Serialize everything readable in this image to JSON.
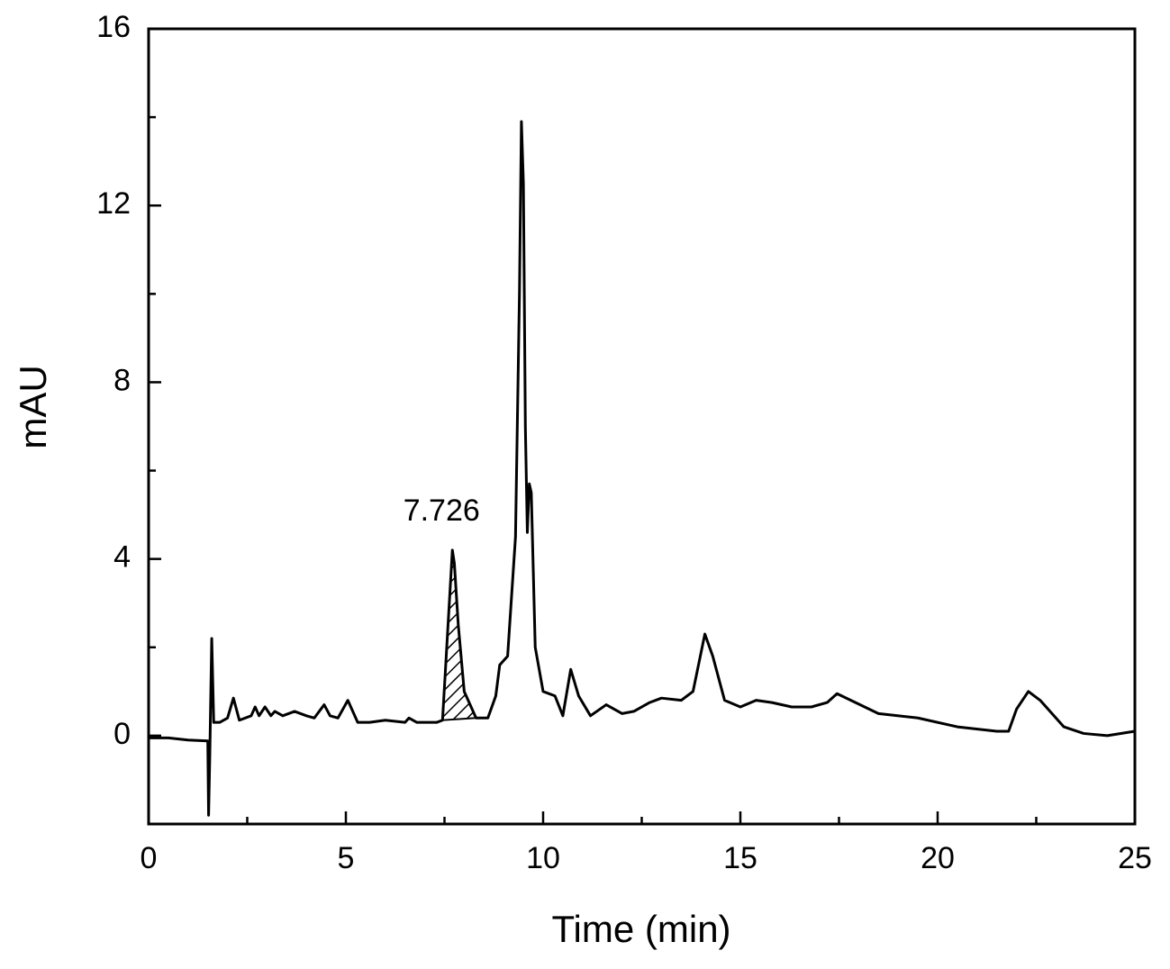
{
  "chart_data": {
    "type": "line",
    "xlabel": "Time (min)",
    "ylabel": "mAU",
    "annotation": "7.726",
    "shaded_region": [
      7.45,
      8.3
    ],
    "color": "#000000",
    "xlim": [
      0,
      25
    ],
    "xticks": [
      0,
      5,
      10,
      15,
      20,
      25
    ],
    "x_minor_ticks": [
      2.5,
      7.5,
      12.5,
      17.5,
      22.5
    ],
    "ylim": [
      -2,
      16
    ],
    "yticks": [
      0,
      4,
      8,
      12,
      16
    ],
    "y_minor_ticks": [
      -2,
      2,
      6,
      10,
      14
    ],
    "x": [
      0,
      0.5,
      1.0,
      1.5,
      1.52,
      1.55,
      1.6,
      1.65,
      1.8,
      2.0,
      2.15,
      2.3,
      2.6,
      2.7,
      2.8,
      2.95,
      3.1,
      3.2,
      3.4,
      3.7,
      4.0,
      4.2,
      4.45,
      4.6,
      4.8,
      5.05,
      5.3,
      5.6,
      6.0,
      6.5,
      6.6,
      6.8,
      7.3,
      7.45,
      7.7,
      7.75,
      7.85,
      8.0,
      8.3,
      8.6,
      8.8,
      8.9,
      9.1,
      9.3,
      9.4,
      9.45,
      9.5,
      9.55,
      9.6,
      9.65,
      9.7,
      9.8,
      10.0,
      10.3,
      10.5,
      10.7,
      10.9,
      11.2,
      11.6,
      12.0,
      12.3,
      12.7,
      13.0,
      13.5,
      13.8,
      14.1,
      14.3,
      14.6,
      15.0,
      15.4,
      15.8,
      16.3,
      16.8,
      17.2,
      17.45,
      17.8,
      18.5,
      19.5,
      20.5,
      21.5,
      21.8,
      22.0,
      22.3,
      22.6,
      23.2,
      23.7,
      24.3,
      25
    ],
    "values": [
      -0.05,
      -0.05,
      -0.1,
      -0.12,
      -1.8,
      -0.5,
      2.2,
      0.3,
      0.3,
      0.4,
      0.85,
      0.35,
      0.45,
      0.65,
      0.45,
      0.65,
      0.45,
      0.55,
      0.45,
      0.55,
      0.45,
      0.4,
      0.7,
      0.45,
      0.4,
      0.8,
      0.3,
      0.3,
      0.35,
      0.3,
      0.4,
      0.3,
      0.3,
      0.35,
      4.2,
      3.9,
      2.5,
      1.0,
      0.4,
      0.4,
      0.9,
      1.6,
      1.8,
      4.5,
      10.0,
      13.9,
      12.5,
      7.0,
      4.6,
      5.7,
      5.5,
      2.0,
      1.0,
      0.9,
      0.45,
      1.5,
      0.9,
      0.45,
      0.7,
      0.5,
      0.55,
      0.75,
      0.85,
      0.8,
      1.0,
      2.3,
      1.8,
      0.8,
      0.65,
      0.8,
      0.75,
      0.65,
      0.65,
      0.75,
      0.95,
      0.8,
      0.5,
      0.4,
      0.2,
      0.1,
      0.1,
      0.6,
      1.0,
      0.8,
      0.2,
      0.05,
      0.0,
      0.1
    ]
  }
}
